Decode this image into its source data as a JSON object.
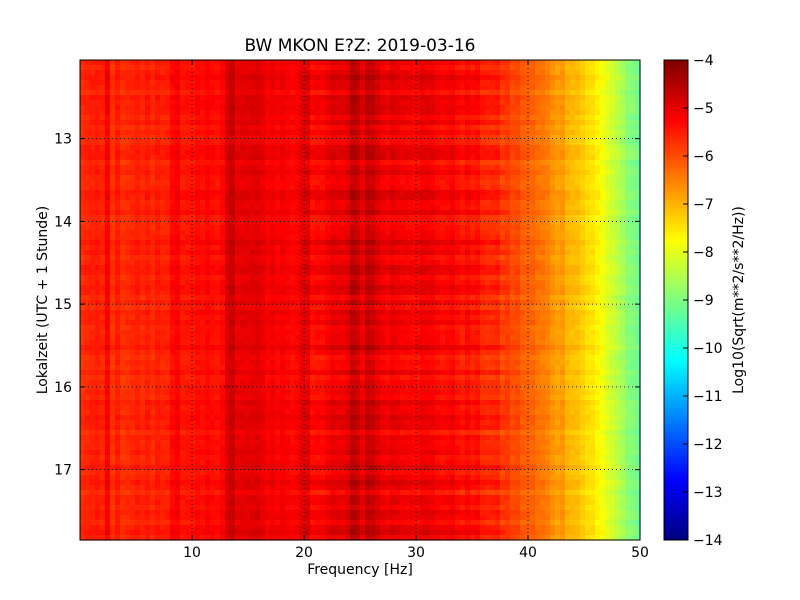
{
  "chart_data": {
    "type": "heatmap",
    "title": "BW MKON E?Z: 2019-03-16",
    "xlabel": "Frequency [Hz]",
    "ylabel": "Lokalzeit (UTC + 1 Stunde)",
    "xlim": [
      0,
      50
    ],
    "ylim": [
      12.05,
      17.85
    ],
    "y_inverted": true,
    "x_ticks": [
      10,
      20,
      30,
      40,
      50
    ],
    "y_ticks": [
      13,
      14,
      15,
      16,
      17
    ],
    "grid": true,
    "colormap": "jet",
    "colorbar": {
      "label": "Log10(Sqrt(m**2/s**2/Hz))",
      "range": [
        -14,
        -4
      ],
      "ticks": [
        -4,
        -5,
        -6,
        -7,
        -8,
        -9,
        -10,
        -11,
        -12,
        -13,
        -14
      ]
    },
    "approx_spectrum_by_frequency": {
      "frequency_hz": [
        0,
        5,
        10,
        15,
        20,
        25,
        30,
        35,
        38,
        40,
        42,
        44,
        46,
        48,
        50
      ],
      "value_log10": [
        -5.6,
        -5.6,
        -5.5,
        -5.0,
        -5.3,
        -5.0,
        -5.1,
        -5.4,
        -5.8,
        -6.2,
        -6.6,
        -7.0,
        -7.6,
        -8.4,
        -9.4
      ]
    },
    "dark_lines_hz": [
      2.5,
      8.5,
      13.5,
      20.2,
      24.5,
      26.0
    ],
    "colors": {
      "colormap_stops": [
        "#00007f",
        "#0000ff",
        "#007fff",
        "#00ffff",
        "#7fff7f",
        "#ffff00",
        "#ff7f00",
        "#ff0000",
        "#7f0000"
      ]
    }
  }
}
